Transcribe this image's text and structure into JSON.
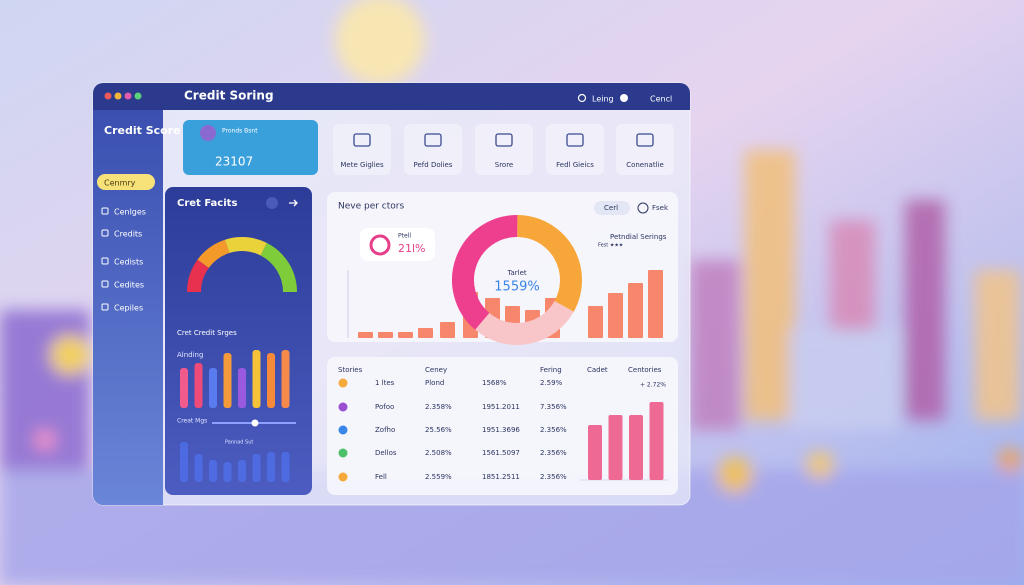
{
  "window": {
    "title": "Credit Soring",
    "search": "Leing",
    "account": "Cencl"
  },
  "sidebar": {
    "title": "Credit Score",
    "items": [
      "Cenmry",
      "Cenlges",
      "Credits",
      "Cedists",
      "Cedites",
      "Cepiles"
    ]
  },
  "cards": [
    {
      "label": "Pronds Bsnt",
      "value": "23107"
    },
    {
      "label": "Mete Giglies"
    },
    {
      "label": "Pefd Dolies"
    },
    {
      "label": "Srore"
    },
    {
      "label": "Fedl Gieics"
    },
    {
      "label": "Conenatlie"
    }
  ],
  "factors": {
    "title": "Cret Facits",
    "gauge": {
      "values": [
        20,
        20,
        25,
        35
      ],
      "colors": [
        "#e8304f",
        "#f39a2b",
        "#e9d23a",
        "#7fcc3a"
      ]
    },
    "bars_title": "Cret Credit Srges",
    "bars_label": "Alnding",
    "bars": {
      "values": [
        40,
        45,
        40,
        55,
        40,
        58,
        55,
        58
      ],
      "colors": [
        "#f05a8c",
        "#f04a78",
        "#5a7bf0",
        "#f59a3a",
        "#9a5ae0",
        "#f5c23a",
        "#f58a3a",
        "#f58a4a"
      ]
    },
    "slider_label": "Creat Mgs",
    "bars2_label": "Pannad Sut",
    "bars2": {
      "values": [
        40,
        28,
        22,
        20,
        22,
        28,
        30,
        30
      ],
      "color": "#4f6ee8"
    }
  },
  "overview": {
    "title": "Neve per ctors",
    "buttons": [
      "Cerl",
      "Fsek"
    ],
    "badge": {
      "label": "Ptell",
      "value": "21l%"
    },
    "donut": {
      "label": "Tarlet",
      "value": "1559%",
      "values": [
        39,
        33,
        28
      ],
      "colors": [
        "#ee3f8f",
        "#f7a73a",
        "#f8c6c8"
      ]
    },
    "legend": {
      "title": "Petndial Serings",
      "sub": "Fest ★★★"
    },
    "bars": {
      "values": [
        6,
        6,
        6,
        10,
        16,
        46,
        40,
        32,
        28,
        40,
        32,
        45,
        55,
        68
      ],
      "color": "#f7876c"
    }
  },
  "table": {
    "headers": [
      "Stories",
      "Ceney",
      "Fering",
      "Cadet",
      "Centories"
    ],
    "note": "+ 2.72%",
    "icon_colors": [
      "#f5a93a",
      "#9a4fd0",
      "#3a86e8",
      "#4cc06a",
      "#f5a93a"
    ],
    "rows": [
      [
        "1 ltes",
        "Plond",
        "1568%",
        "2.59%"
      ],
      [
        "Pofoo",
        "2.358%",
        "1951.2011",
        "7.356%"
      ],
      [
        "Zofho",
        "25.56%",
        "1951.3696",
        "2.356%"
      ],
      [
        "Dellos",
        "2.508%",
        "1561.5097",
        "2.356%"
      ],
      [
        "Fell",
        "2.559%",
        "1851.2511",
        "2.356%"
      ]
    ],
    "bars": {
      "values": [
        55,
        65,
        65,
        78
      ],
      "color": "#ee5a8a"
    }
  }
}
